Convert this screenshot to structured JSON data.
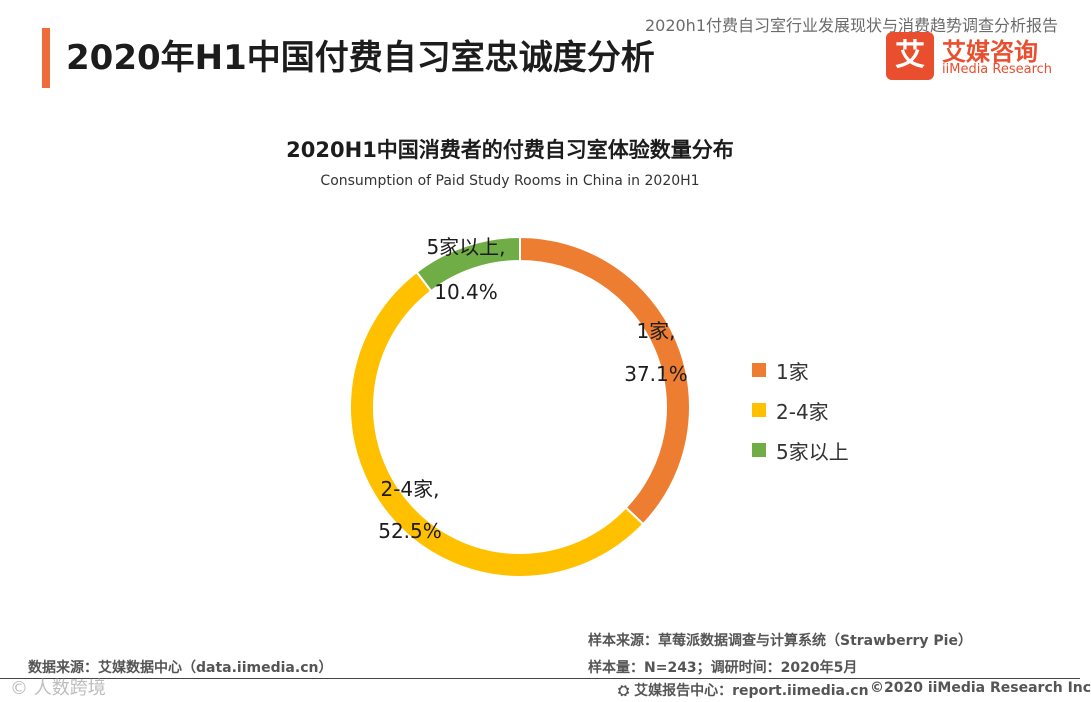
{
  "header": {
    "report_title": "2020h1付费自习室行业发展现状与消费趋势调查分析报告",
    "page_title": "2020年H1中国付费自习室忠诚度分析",
    "logo_mark": "艾",
    "logo_cn": "艾媒咨询",
    "logo_en": "iiMedia Research"
  },
  "colors": {
    "accent": "#ef6c3a",
    "brand": "#e94e2e"
  },
  "chart_data": {
    "type": "pie",
    "variant": "donut",
    "title": "2020H1中国消费者的付费自习室体验数量分布",
    "subtitle": "Consumption of Paid Study Rooms in China in 2020H1",
    "categories": [
      "1家",
      "2-4家",
      "5家以上"
    ],
    "values": [
      37.1,
      52.5,
      10.4
    ],
    "unit": "%",
    "colors": [
      "#ed7d31",
      "#ffc000",
      "#70ad47"
    ],
    "data_labels": [
      {
        "name": "1家,",
        "value": "37.1%"
      },
      {
        "name": "2-4家,",
        "value": "52.5%"
      },
      {
        "name": "5家以上,",
        "value": "10.4%"
      }
    ],
    "legend": [
      "1家",
      "2-4家",
      "5家以上"
    ],
    "legend_position": "right"
  },
  "footer": {
    "data_source": "数据来源：艾媒数据中心（data.iimedia.cn）",
    "sample_source": "样本来源：草莓派数据调查与计算系统（Strawberry Pie）",
    "sample_size": "样本量：N=243；调研时间：2020年5月",
    "report_center": "艾媒报告中心：report.iimedia.cn",
    "copyright": "©2020  iiMedia Research  Inc",
    "watermark": "© 人数跨境"
  }
}
